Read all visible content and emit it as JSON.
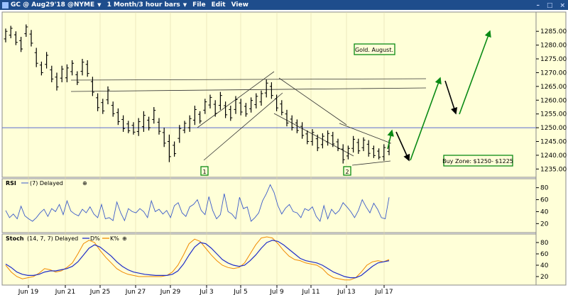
{
  "window": {
    "title": "GC @ Aug29'18 @NYME",
    "interval": "1 Month/3 hour bars",
    "menus": [
      "File",
      "Edit",
      "View"
    ],
    "controls": [
      "–",
      "□",
      "×"
    ]
  },
  "chart_data": {
    "type": "ohlc",
    "price_panel": {
      "ylim": [
        1232,
        1292
      ],
      "y_ticks": [
        "1285.00",
        "1280.00",
        "1275.00",
        "1270.00",
        "1265.00",
        "1260.00",
        "1255.00",
        "1250.00",
        "1245.00",
        "1240.00",
        "1235.00"
      ],
      "y_tick_values": [
        1285,
        1280,
        1275,
        1270,
        1265,
        1260,
        1255,
        1250,
        1245,
        1240,
        1235
      ],
      "horizontal_line": 1250,
      "bars": [
        [
          1286.0,
          1281.0
        ],
        [
          1287.0,
          1282.5
        ],
        [
          1285.0,
          1280.0
        ],
        [
          1283.0,
          1277.5
        ],
        [
          1287.5,
          1283.0
        ],
        [
          1285.5,
          1279.5
        ],
        [
          1279.0,
          1272.0
        ],
        [
          1274.0,
          1269.0
        ],
        [
          1277.5,
          1271.5
        ],
        [
          1272.5,
          1266.5
        ],
        [
          1270.0,
          1263.5
        ],
        [
          1272.5,
          1266.5
        ],
        [
          1273.0,
          1266.5
        ],
        [
          1274.5,
          1269.0
        ],
        [
          1270.5,
          1265.5
        ],
        [
          1275.0,
          1269.0
        ],
        [
          1274.5,
          1268.5
        ],
        [
          1268.5,
          1261.5
        ],
        [
          1262.5,
          1256.0
        ],
        [
          1260.5,
          1255.0
        ],
        [
          1265.0,
          1258.5
        ],
        [
          1259.5,
          1254.0
        ],
        [
          1257.0,
          1251.0
        ],
        [
          1254.5,
          1248.5
        ],
        [
          1252.5,
          1248.0
        ],
        [
          1252.0,
          1247.5
        ],
        [
          1253.5,
          1247.0
        ],
        [
          1256.0,
          1248.5
        ],
        [
          1254.0,
          1249.0
        ],
        [
          1257.5,
          1251.5
        ],
        [
          1253.5,
          1247.5
        ],
        [
          1250.0,
          1243.0
        ],
        [
          1247.5,
          1237.5
        ],
        [
          1245.0,
          1239.5
        ],
        [
          1251.0,
          1244.5
        ],
        [
          1252.5,
          1248.0
        ],
        [
          1254.5,
          1248.5
        ],
        [
          1258.0,
          1251.0
        ],
        [
          1256.0,
          1251.5
        ],
        [
          1260.5,
          1255.0
        ],
        [
          1262.0,
          1257.0
        ],
        [
          1260.0,
          1254.0
        ],
        [
          1263.0,
          1256.5
        ],
        [
          1259.5,
          1253.5
        ],
        [
          1258.0,
          1252.5
        ],
        [
          1261.5,
          1255.0
        ],
        [
          1260.5,
          1254.5
        ],
        [
          1259.0,
          1254.0
        ],
        [
          1261.0,
          1255.5
        ],
        [
          1262.5,
          1257.0
        ],
        [
          1263.5,
          1258.0
        ],
        [
          1267.5,
          1261.0
        ],
        [
          1266.5,
          1260.5
        ],
        [
          1262.0,
          1256.0
        ],
        [
          1260.0,
          1254.5
        ],
        [
          1256.5,
          1250.5
        ],
        [
          1254.5,
          1249.0
        ],
        [
          1253.0,
          1248.0
        ],
        [
          1252.0,
          1246.0
        ],
        [
          1249.0,
          1244.0
        ],
        [
          1249.5,
          1243.5
        ],
        [
          1247.5,
          1241.5
        ],
        [
          1248.0,
          1242.5
        ],
        [
          1249.0,
          1243.5
        ],
        [
          1248.5,
          1243.0
        ],
        [
          1246.0,
          1241.5
        ],
        [
          1244.0,
          1237.0
        ],
        [
          1243.5,
          1238.5
        ],
        [
          1247.0,
          1241.0
        ],
        [
          1246.0,
          1240.5
        ],
        [
          1246.5,
          1241.5
        ],
        [
          1245.5,
          1239.5
        ],
        [
          1243.5,
          1239.0
        ],
        [
          1242.5,
          1238.5
        ],
        [
          1244.0,
          1238.0
        ],
        [
          1245.5,
          1240.0
        ]
      ],
      "trendlines_note": "upper resistance lines ~1268 and ~1265; rising channel from Jul 3 to Jul 9; falling channel Jul 9 to Jul 17",
      "annotations": [
        {
          "text": "Gold. August.",
          "box": true
        },
        {
          "text": "Buy Zone: $1250- $1225",
          "box": true
        },
        {
          "text": "1",
          "box": true
        },
        {
          "text": "2",
          "box": true
        }
      ]
    },
    "rsi_panel": {
      "label": "RSI",
      "params": "(7) Delayed",
      "ylim": [
        5,
        95
      ],
      "y_ticks": [
        "80",
        "60",
        "40",
        "20"
      ],
      "y_tick_values": [
        80,
        60,
        40,
        20
      ],
      "values": [
        42,
        30,
        36,
        28,
        49,
        33,
        28,
        24,
        30,
        38,
        44,
        32,
        45,
        40,
        52,
        35,
        58,
        41,
        36,
        33,
        44,
        38,
        48,
        36,
        30,
        52,
        28,
        30,
        25,
        56,
        38,
        25,
        45,
        40,
        38,
        45,
        40,
        30,
        58,
        40,
        44,
        36,
        42,
        30,
        50,
        55,
        38,
        32,
        48,
        52,
        60,
        42,
        35,
        65,
        42,
        28,
        35,
        70,
        40,
        36,
        28,
        64,
        45,
        48,
        24,
        30,
        38,
        58,
        70,
        85,
        72,
        50,
        36,
        46,
        52,
        40,
        38,
        30,
        45,
        42,
        48,
        32,
        24,
        50,
        28,
        44,
        36,
        42,
        55,
        48,
        40,
        30,
        42,
        60,
        48,
        38,
        54,
        44,
        30,
        28,
        64
      ]
    },
    "stoch_panel": {
      "label": "Stoch",
      "params": "(14, 7, 7) Delayed",
      "legend": [
        "D%",
        "K%"
      ],
      "colors": {
        "D%": "#1f2dc8",
        "K%": "#f08a00"
      },
      "ylim": [
        5,
        95
      ],
      "y_ticks": [
        "80",
        "60",
        "40",
        "20"
      ],
      "y_tick_values": [
        80,
        60,
        40,
        20
      ],
      "d_values": [
        42,
        36,
        28,
        24,
        22,
        22,
        24,
        28,
        30,
        30,
        32,
        34,
        38,
        46,
        58,
        70,
        76,
        72,
        64,
        56,
        46,
        38,
        32,
        28,
        26,
        24,
        23,
        22,
        22,
        22,
        24,
        30,
        42,
        58,
        72,
        80,
        78,
        70,
        60,
        50,
        44,
        40,
        38,
        40,
        48,
        58,
        70,
        80,
        84,
        82,
        76,
        68,
        60,
        52,
        48,
        46,
        44,
        40,
        34,
        28,
        24,
        20,
        18,
        18,
        22,
        30,
        38,
        44,
        46,
        48
      ],
      "k_values": [
        40,
        28,
        20,
        16,
        18,
        20,
        26,
        34,
        32,
        28,
        30,
        36,
        44,
        60,
        78,
        84,
        80,
        66,
        54,
        44,
        34,
        28,
        24,
        22,
        20,
        20,
        20,
        20,
        20,
        22,
        28,
        40,
        58,
        78,
        86,
        82,
        70,
        58,
        48,
        40,
        36,
        34,
        36,
        44,
        60,
        76,
        88,
        90,
        88,
        78,
        66,
        56,
        50,
        48,
        44,
        42,
        40,
        34,
        24,
        18,
        16,
        14,
        14,
        18,
        28,
        40,
        46,
        48,
        46,
        50
      ]
    },
    "x_ticks": [
      "Jun 19",
      "Jun 21",
      "Jun 25",
      "Jun 27",
      "Jun 29",
      "Jul 3",
      "Jul 5",
      "Jul 9",
      "Jul 11",
      "Jul 13",
      "Jul 17"
    ]
  },
  "colors": {
    "plot_bg": "#ffffd8",
    "frame": "#888888",
    "title_bar": "#1e4d8c",
    "arrow_green": "#0a8a14",
    "arrow_black": "#000000",
    "hline": "#5a6ad0",
    "rsi_line": "#3b5bc9"
  }
}
